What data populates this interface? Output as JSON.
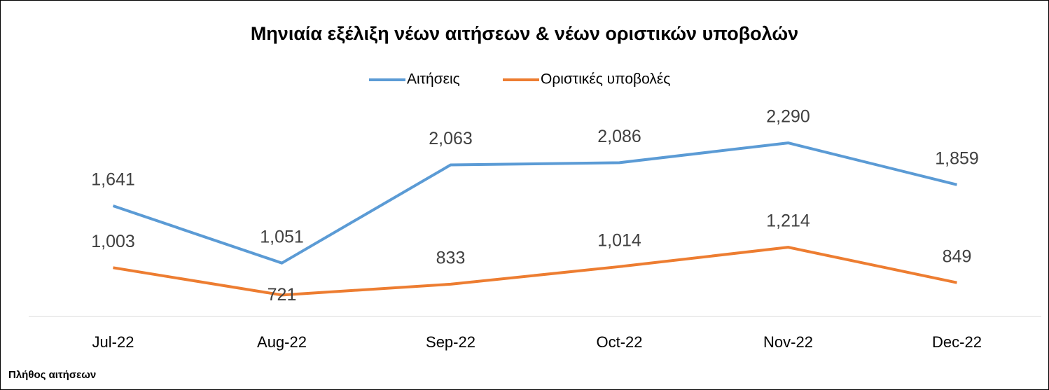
{
  "chart_data": {
    "type": "line",
    "title": "Μηνιαία εξέλιξη νέων αιτήσεων & νέων οριστικών υποβολών",
    "categories": [
      "Jul-22",
      "Aug-22",
      "Sep-22",
      "Oct-22",
      "Nov-22",
      "Dec-22"
    ],
    "series": [
      {
        "name": "Αιτήσεις",
        "color": "#5b9bd5",
        "values": [
          1641,
          1051,
          2063,
          2086,
          2290,
          1859
        ],
        "value_labels": [
          "1,641",
          "1,051",
          "2,063",
          "2,086",
          "2,290",
          "1,859"
        ]
      },
      {
        "name": "Οριστικές υποβολές",
        "color": "#ed7d31",
        "values": [
          1003,
          721,
          833,
          1014,
          1214,
          849
        ],
        "value_labels": [
          "1,003",
          "721",
          "833",
          "1,014",
          "1,214",
          "849"
        ]
      }
    ],
    "ylim": [
      500,
      2500
    ],
    "legend": "top",
    "note": "Πλήθος αιτήσεων"
  }
}
